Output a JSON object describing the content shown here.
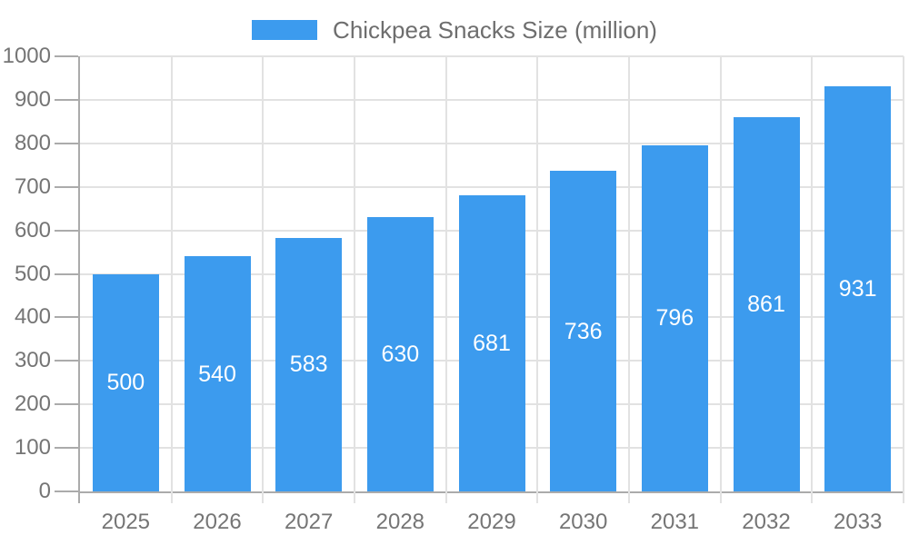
{
  "page": {
    "background_color": "#ffffff"
  },
  "legend": {
    "label": "Chickpea Snacks Size (million)"
  },
  "chart_data": {
    "type": "bar",
    "title": "Chickpea Snacks Size (million)",
    "legend": {
      "position": "top",
      "label": "Chickpea Snacks Size (million)",
      "swatch_color": "#3c9bee"
    },
    "series_name": "Chickpea Snacks Size (million)",
    "categories": [
      "2025",
      "2026",
      "2027",
      "2028",
      "2029",
      "2030",
      "2031",
      "2032",
      "2033"
    ],
    "values": [
      500,
      540,
      583,
      630,
      681,
      736,
      796,
      861,
      931
    ],
    "value_labels_shown": true,
    "xlabel": "",
    "ylabel": "",
    "ylim": [
      0,
      1000
    ],
    "ytick_step": 100,
    "yticks": [
      0,
      100,
      200,
      300,
      400,
      500,
      600,
      700,
      800,
      900,
      1000
    ],
    "grid": {
      "horizontal": true,
      "vertical": true
    },
    "colors": {
      "bar": "#3c9bee",
      "value_label": "#ffffff",
      "axis_line": "#ababab",
      "gridline": "#e2e2e2",
      "tick_label": "#757575",
      "legend_text": "#6e6e6e"
    }
  }
}
